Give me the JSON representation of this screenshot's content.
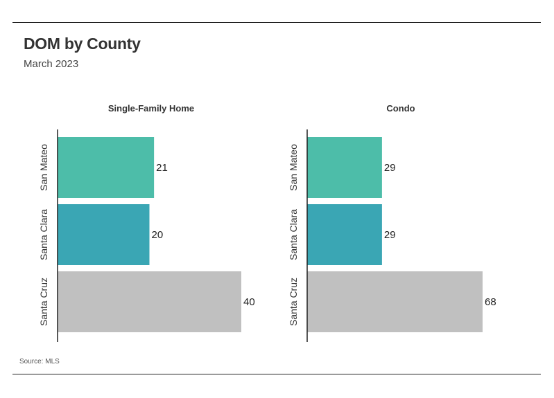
{
  "header": {
    "title": "DOM by County",
    "subtitle": "March 2023"
  },
  "footer": {
    "source": "Source: MLS"
  },
  "colors": {
    "San Mateo": "#4dbda9",
    "Santa Clara": "#3aa6b4",
    "Santa Cruz": "#c0c0c0",
    "axis": "#222222"
  },
  "chart_data": [
    {
      "type": "bar",
      "orientation": "horizontal",
      "title": "Single-Family Home",
      "categories": [
        "San Mateo",
        "Santa Clara",
        "Santa Cruz"
      ],
      "values": [
        21,
        20,
        40
      ],
      "xlim": [
        0,
        40
      ],
      "grid": false,
      "data_labels": true
    },
    {
      "type": "bar",
      "orientation": "horizontal",
      "title": "Condo",
      "categories": [
        "San Mateo",
        "Santa Clara",
        "Santa Cruz"
      ],
      "values": [
        29,
        29,
        68
      ],
      "xlim": [
        0,
        68
      ],
      "grid": false,
      "data_labels": true
    }
  ]
}
